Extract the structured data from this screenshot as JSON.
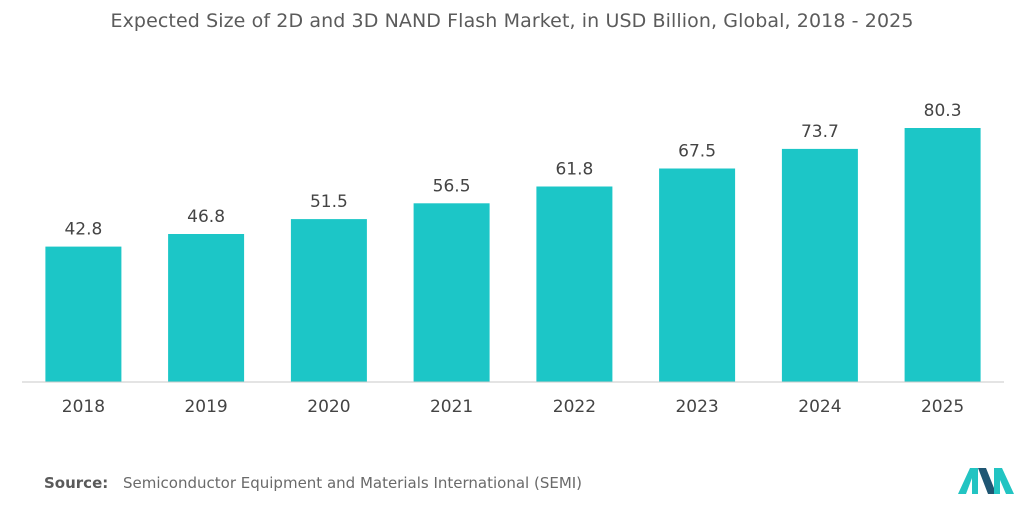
{
  "chart_data": {
    "type": "bar",
    "title": "Expected Size of 2D and 3D NAND Flash Market, in USD Billion, Global, 2018 - 2025",
    "categories": [
      "2018",
      "2019",
      "2020",
      "2021",
      "2022",
      "2023",
      "2024",
      "2025"
    ],
    "values": [
      42.8,
      46.8,
      51.5,
      56.5,
      61.8,
      67.5,
      73.7,
      80.3
    ],
    "value_labels": [
      "42.8",
      "46.8",
      "51.5",
      "56.5",
      "61.8",
      "67.5",
      "73.7",
      "80.3"
    ],
    "xlabel": "",
    "ylabel": "",
    "ylim": [
      0,
      86
    ],
    "grid": false,
    "legend": "none",
    "bar_color": "#1cc6c7"
  },
  "source": {
    "label": "Source:",
    "text": "Semiconductor Equipment and Materials International (SEMI)"
  },
  "colors": {
    "bar": "#1cc6c7",
    "baseline": "#c9c9c9",
    "text": "#555555",
    "logo_dark": "#1f5673",
    "logo_teal": "#22c4c2"
  }
}
